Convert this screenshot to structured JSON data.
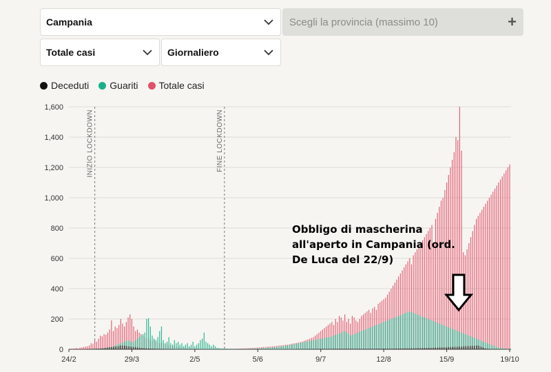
{
  "controls": {
    "region": {
      "value": "Campania"
    },
    "province": {
      "placeholder": "Scegli la provincia (massimo 10)",
      "add_symbol": "+"
    },
    "metric": {
      "value": "Totale casi"
    },
    "frequency": {
      "value": "Giornaliero"
    }
  },
  "legend": [
    {
      "label": "Deceduti",
      "color": "#111111"
    },
    {
      "label": "Guariti",
      "color": "#1aaf8b"
    },
    {
      "label": "Totale casi",
      "color": "#e0526a"
    }
  ],
  "annotation": {
    "lines": [
      "Obbligo di mascherina",
      "all'aperto in Campania (ord.",
      "De Luca del 22/9)"
    ],
    "arrow_icon": "down-arrow-icon"
  },
  "chart_data": {
    "type": "bar",
    "x_tick_labels": [
      "24/2",
      "29/3",
      "2/5",
      "5/6",
      "9/7",
      "12/8",
      "15/9",
      "19/10"
    ],
    "y_tick_labels": [
      "0",
      "200",
      "400",
      "600",
      "800",
      "1,000",
      "1,200",
      "1,400",
      "1,600"
    ],
    "ylim": [
      0,
      1600
    ],
    "grid": true,
    "event_lines": [
      {
        "label": "INIZIO LOCKDOWN",
        "date": "9/3"
      },
      {
        "label": "FINE LOCKDOWN",
        "date": "18/5"
      }
    ],
    "start_date": "24/2",
    "end_date": "19/10",
    "series": [
      {
        "name": "Totale casi",
        "color": "#e0526a",
        "segments": [
          {
            "from": 0,
            "to": 10,
            "values": [
              0,
              0,
              3,
              5,
              8,
              4,
              10,
              12,
              15,
              18,
              20
            ]
          },
          {
            "from": 11,
            "to": 20,
            "values": [
              25,
              40,
              35,
              60,
              50,
              70,
              90,
              85,
              100,
              95
            ]
          },
          {
            "from": 21,
            "to": 30,
            "values": [
              110,
              130,
              190,
              120,
              150,
              140,
              160,
              200,
              170,
              150
            ]
          },
          {
            "from": 31,
            "to": 40,
            "values": [
              180,
              210,
              230,
              200,
              150,
              120,
              130,
              110,
              100,
              90
            ]
          },
          {
            "from": 41,
            "to": 60,
            "values": [
              80,
              70,
              75,
              60,
              55,
              65,
              50,
              45,
              40,
              45,
              38,
              35,
              30,
              28,
              26,
              24,
              20,
              18,
              16,
              15
            ]
          },
          {
            "from": 61,
            "to": 90,
            "values": [
              14,
              12,
              10,
              9,
              8,
              8,
              7,
              6,
              6,
              5,
              5,
              4,
              4,
              3,
              3,
              3,
              2,
              2,
              2,
              2,
              3,
              2,
              2,
              3,
              3,
              2,
              2,
              3,
              3,
              4
            ]
          },
          {
            "from": 91,
            "to": 140,
            "values": [
              4,
              5,
              5,
              6,
              6,
              7,
              8,
              8,
              9,
              10,
              10,
              12,
              12,
              14,
              15,
              15,
              16,
              18,
              18,
              20,
              20,
              22,
              24,
              25,
              26,
              28,
              30,
              30,
              32,
              35,
              38,
              40,
              42,
              45,
              48,
              50,
              55,
              60,
              65,
              70,
              75,
              80,
              90,
              100,
              110,
              120,
              130,
              140,
              150,
              160
            ]
          },
          {
            "from": 141,
            "to": 180,
            "values": [
              170,
              180,
              160,
              200,
              180,
              220,
              210,
              190,
              230,
              180,
              200,
              170,
              220,
              210,
              190,
              180,
              200,
              220,
              230,
              240,
              250,
              260,
              240,
              270,
              280,
              260,
              300,
              310,
              320,
              330,
              340,
              360,
              380,
              400,
              420,
              440,
              460,
              480,
              500,
              520
            ]
          },
          {
            "from": 181,
            "to": 238,
            "values": [
              540,
              560,
              580,
              600,
              560,
              620,
              640,
              660,
              680,
              700,
              720,
              740,
              760,
              780,
              800,
              820,
              700,
              860,
              900,
              940,
              980,
              1000,
              1050,
              1100,
              1150,
              1200,
              1250,
              1300,
              1400,
              1380,
              1600,
              1310,
              640,
              620,
              660,
              700,
              740,
              780,
              820,
              860,
              880,
              900,
              920,
              940,
              960,
              980,
              1000,
              1020,
              1040,
              1060,
              1080,
              1100,
              1120,
              1140,
              1160,
              1180,
              1200,
              1220
            ]
          }
        ]
      },
      {
        "name": "Guariti",
        "color": "#1aaf8b",
        "segments": [
          {
            "from": 0,
            "to": 40,
            "values": [
              0,
              0,
              0,
              0,
              0,
              0,
              0,
              0,
              0,
              0,
              0,
              0,
              0,
              0,
              0,
              2,
              3,
              3,
              5,
              6,
              8,
              10,
              12,
              15,
              20,
              25,
              30,
              35,
              40,
              45,
              50,
              55,
              60,
              55,
              50,
              45,
              60,
              70,
              80,
              90,
              100
            ]
          },
          {
            "from": 41,
            "to": 80,
            "values": [
              110,
              200,
              205,
              150,
              90,
              70,
              60,
              80,
              120,
              150,
              60,
              40,
              50,
              80,
              40,
              30,
              60,
              40,
              50,
              30,
              40,
              20,
              30,
              40,
              20,
              30,
              50,
              20,
              30,
              40,
              60,
              70,
              110,
              50,
              40,
              30,
              20,
              30,
              20,
              10,
              10
            ]
          },
          {
            "from": 81,
            "to": 140,
            "values": [
              8,
              6,
              5,
              5,
              4,
              4,
              3,
              3,
              3,
              2,
              2,
              2,
              2,
              2,
              2,
              2,
              3,
              3,
              4,
              4,
              5,
              5,
              6,
              6,
              7,
              8,
              9,
              10,
              11,
              12,
              14,
              15,
              16,
              18,
              20,
              22,
              24,
              26,
              28,
              30,
              32,
              35,
              38,
              40,
              42,
              45,
              48,
              50,
              52,
              55,
              58,
              60,
              62,
              65,
              68,
              70,
              72,
              75,
              78,
              80
            ]
          },
          {
            "from": 141,
            "to": 238,
            "values": [
              80,
              85,
              90,
              95,
              100,
              105,
              110,
              115,
              120,
              110,
              100,
              90,
              95,
              100,
              105,
              110,
              115,
              120,
              125,
              130,
              135,
              140,
              145,
              150,
              155,
              160,
              165,
              170,
              175,
              180,
              185,
              190,
              195,
              200,
              205,
              210,
              215,
              220,
              225,
              230,
              235,
              240,
              245,
              250,
              245,
              240,
              235,
              230,
              225,
              220,
              215,
              210,
              205,
              200,
              195,
              190,
              185,
              180,
              175,
              170,
              165,
              160,
              155,
              150,
              145,
              140,
              135,
              130,
              125,
              120,
              115,
              110,
              105,
              100,
              95,
              90,
              85,
              80,
              75,
              70,
              65,
              60,
              55,
              50,
              45,
              40,
              35,
              30,
              25,
              20,
              15,
              10,
              8,
              6,
              5,
              4,
              3,
              2
            ]
          }
        ]
      },
      {
        "name": "Deceduti",
        "color": "#111111",
        "segments": [
          {
            "from": 0,
            "to": 60,
            "values": [
              0,
              0,
              0,
              0,
              0,
              0,
              0,
              0,
              0,
              0,
              1,
              1,
              2,
              2,
              3,
              3,
              4,
              5,
              6,
              8,
              10,
              12,
              14,
              15,
              16,
              18,
              20,
              22,
              24,
              25,
              24,
              22,
              20,
              18,
              16,
              15,
              14,
              12,
              10,
              9,
              8,
              7,
              6,
              5,
              5,
              4,
              4,
              3,
              3,
              2,
              2,
              2,
              1,
              1,
              1,
              1,
              1,
              0,
              0,
              0,
              0
            ]
          },
          {
            "from": 61,
            "to": 238,
            "values": [
              0,
              0,
              0,
              0,
              0,
              0,
              0,
              0,
              0,
              0,
              0,
              0,
              0,
              0,
              0,
              0,
              0,
              0,
              0,
              0,
              0,
              0,
              0,
              0,
              0,
              0,
              0,
              0,
              0,
              0,
              0,
              0,
              0,
              0,
              0,
              0,
              0,
              0,
              0,
              0,
              0,
              0,
              0,
              0,
              0,
              0,
              0,
              0,
              0,
              0,
              0,
              0,
              0,
              0,
              0,
              0,
              0,
              0,
              0,
              0,
              0,
              0,
              1,
              1,
              1,
              1,
              1,
              1,
              1,
              1,
              1,
              2,
              2,
              2,
              2,
              2,
              2,
              2,
              2,
              2,
              2,
              2,
              3,
              3,
              3,
              3,
              3,
              3,
              3,
              3,
              3,
              3,
              3,
              3,
              3,
              3,
              3,
              3,
              3,
              3,
              3,
              3,
              3,
              3,
              3,
              4,
              4,
              4,
              4,
              4,
              4,
              4,
              4,
              4,
              4,
              5,
              5,
              5,
              5,
              5,
              5,
              6,
              6,
              6,
              6,
              6,
              7,
              7,
              7,
              8,
              8,
              8,
              9,
              9,
              9,
              10,
              10,
              11,
              11,
              12,
              12,
              13,
              13,
              14,
              14,
              15,
              15,
              16,
              16,
              17,
              18,
              18,
              19,
              20,
              20,
              21,
              22,
              22,
              23,
              24,
              25,
              20,
              15,
              10,
              5,
              3,
              2,
              1,
              1,
              1,
              0,
              0,
              0
            ]
          }
        ]
      }
    ]
  }
}
